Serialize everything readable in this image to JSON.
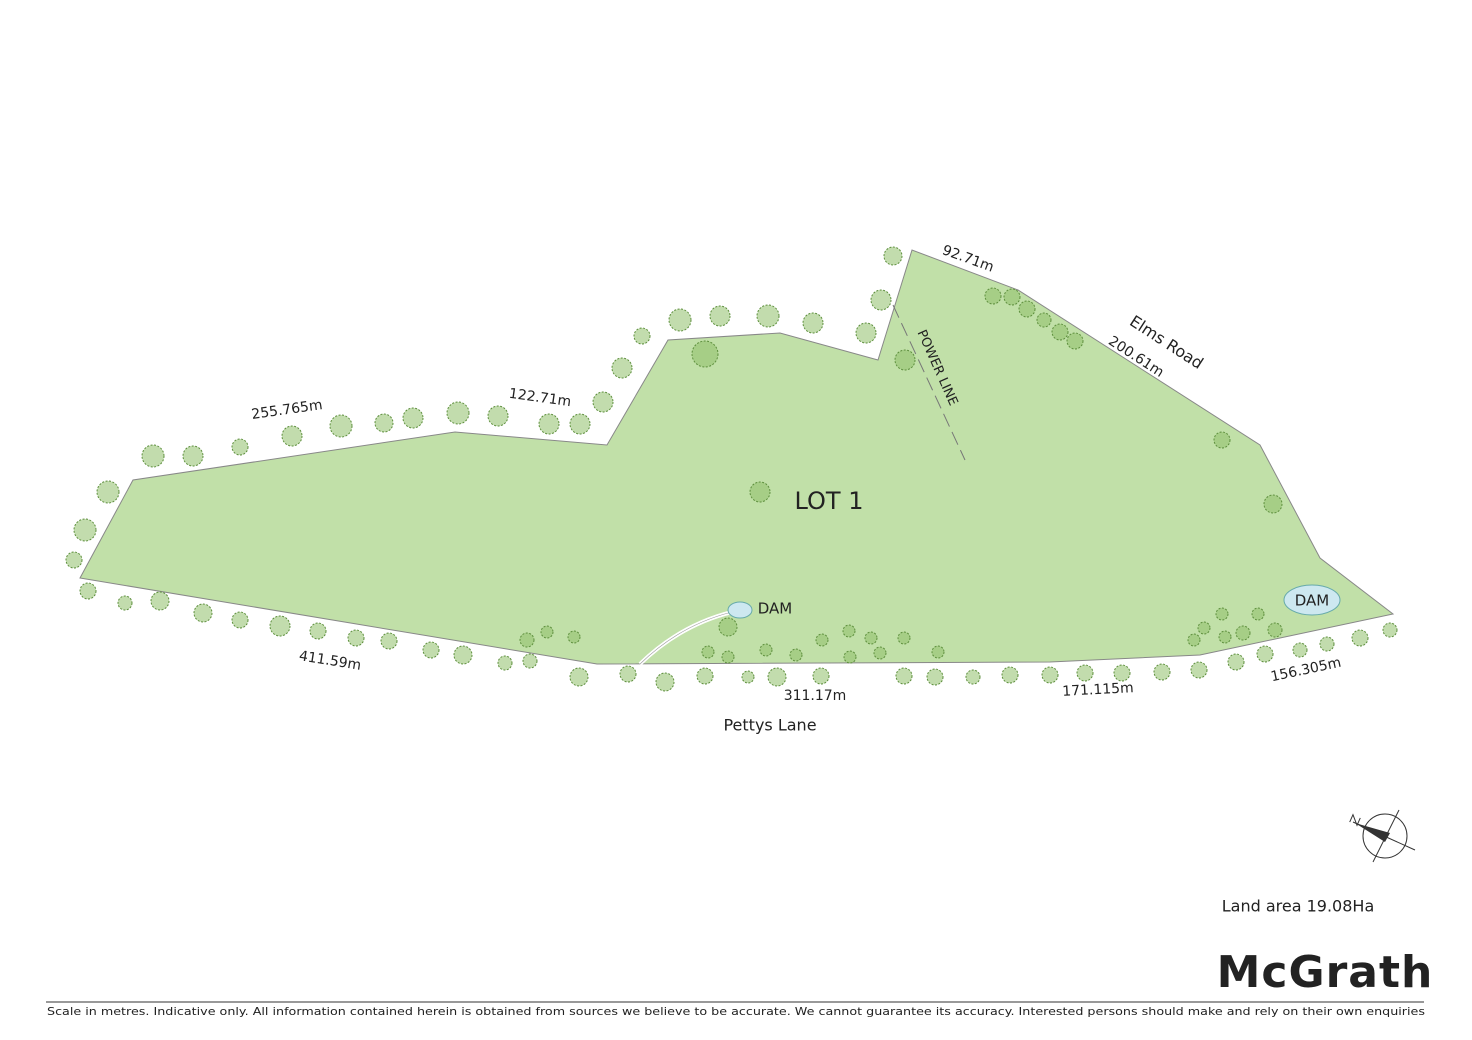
{
  "plan": {
    "lot": "LOT 1",
    "dimensions": [
      "255.765m",
      "122.71m",
      "92.71m",
      "200.61m",
      "411.59m",
      "311.17m",
      "171.115m",
      "156.305m"
    ],
    "roads": [
      "Elms Road",
      "Pettys Lane"
    ],
    "power_line": "POWER LINE",
    "dams": [
      "DAM",
      "DAM"
    ],
    "land_area": "Land area 19.08Ha",
    "brand": "McGrath",
    "disclaimer": "Scale in metres. Indicative only. All information contained herein is obtained from sources we believe to be accurate. We cannot guarantee its accuracy. Interested persons should make and rely on their own enquiries"
  }
}
